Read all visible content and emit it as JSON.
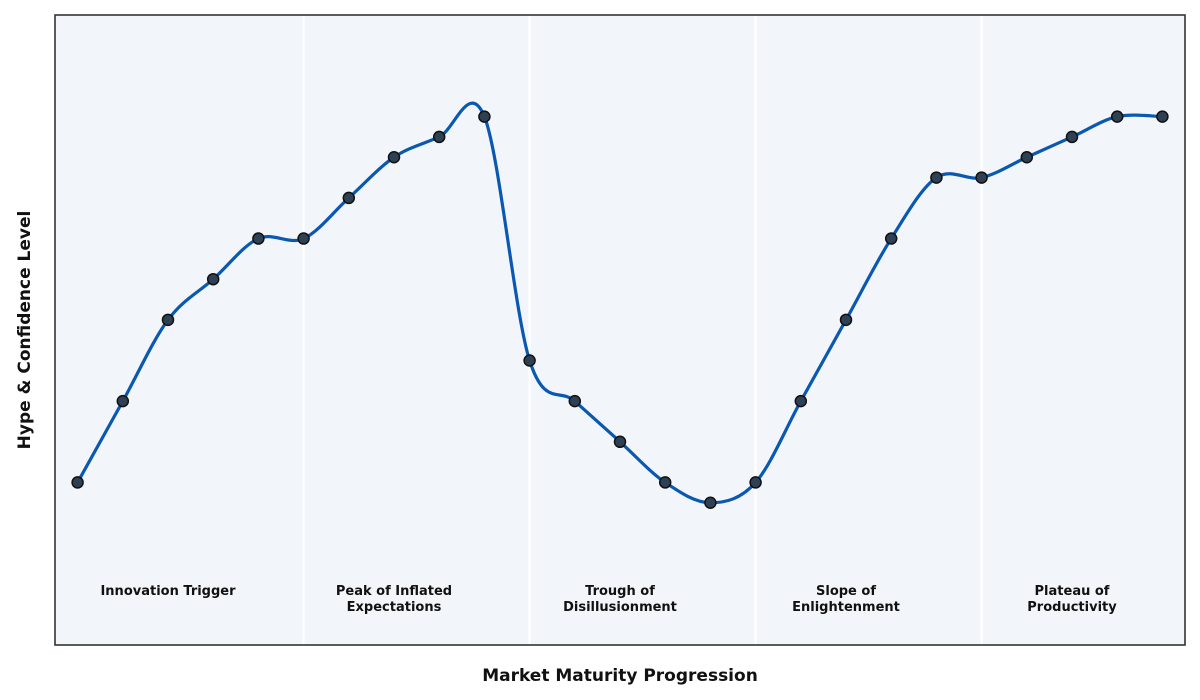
{
  "chart_data": {
    "type": "line",
    "title": "",
    "xlabel": "Market Maturity Progression",
    "ylabel": "Hype & Confidence Level",
    "xlim": [
      0.5,
      25.5
    ],
    "ylim": [
      0,
      31
    ],
    "grid": false,
    "ticks_visible": false,
    "phase_boundaries": [
      6,
      11,
      16,
      21
    ],
    "phases": [
      {
        "lines": [
          "Innovation Trigger"
        ],
        "center": 3
      },
      {
        "lines": [
          "Peak of Inflated",
          "Expectations"
        ],
        "center": 8
      },
      {
        "lines": [
          "Trough of",
          "Disillusionment"
        ],
        "center": 13
      },
      {
        "lines": [
          "Slope of",
          "Enlightenment"
        ],
        "center": 18
      },
      {
        "lines": [
          "Plateau of",
          "Productivity"
        ],
        "center": 23
      }
    ],
    "series": [
      {
        "x": [
          1,
          2,
          3,
          4,
          5,
          6,
          7,
          8,
          9,
          10,
          11,
          12,
          13,
          14,
          15,
          16,
          17,
          18,
          19,
          20,
          21,
          22,
          23,
          24,
          25
        ],
        "values": [
          8,
          12,
          16,
          18,
          20,
          20,
          22,
          24,
          25,
          26,
          14,
          12,
          10,
          8,
          7,
          8,
          12,
          16,
          20,
          23,
          23,
          24,
          25,
          26,
          26
        ]
      }
    ],
    "colors": {
      "line": "#0a58b0",
      "marker_fill": "#2e4053",
      "marker_edge": "#111111",
      "plot_bg": "#f2f6fa",
      "phase_divider": "#ffffff",
      "frame": "#333333"
    }
  }
}
